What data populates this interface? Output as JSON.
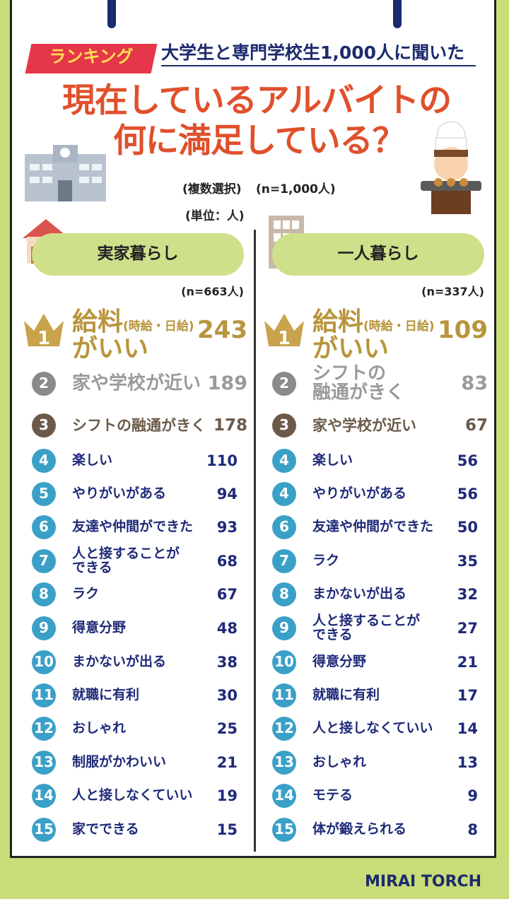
{
  "header": {
    "badge": "ランキング",
    "lead": "大学生と専門学校生1,000人に聞いた",
    "title_line1": "現在しているアルバイトの",
    "title_line2": "何に満足している？",
    "note": "(複数選択)",
    "sample": "(n=1,000人)",
    "unit": "(単位：人)"
  },
  "groups": [
    {
      "name": "実家暮らし",
      "n": "(n=663人)",
      "items": [
        {
          "rank": 1,
          "label": [
            "給料",
            "(時給・日給)",
            "がいい"
          ],
          "value": 243
        },
        {
          "rank": 2,
          "label": "家や学校が近い",
          "value": 189
        },
        {
          "rank": 3,
          "label": "シフトの融通がきく",
          "value": 178
        },
        {
          "rank": 4,
          "label": "楽しい",
          "value": 110
        },
        {
          "rank": 5,
          "label": "やりがいがある",
          "value": 94
        },
        {
          "rank": 6,
          "label": "友達や仲間ができた",
          "value": 93
        },
        {
          "rank": 7,
          "label": "人と接することが\nできる",
          "value": 68
        },
        {
          "rank": 8,
          "label": "ラク",
          "value": 67
        },
        {
          "rank": 9,
          "label": "得意分野",
          "value": 48
        },
        {
          "rank": 10,
          "label": "まかないが出る",
          "value": 38
        },
        {
          "rank": 11,
          "label": "就職に有利",
          "value": 30
        },
        {
          "rank": 12,
          "label": "おしゃれ",
          "value": 25
        },
        {
          "rank": 13,
          "label": "制服がかわいい",
          "value": 21
        },
        {
          "rank": 14,
          "label": "人と接しなくていい",
          "value": 19
        },
        {
          "rank": 15,
          "label": "家でできる",
          "value": 15
        }
      ]
    },
    {
      "name": "一人暮らし",
      "n": "(n=337人)",
      "items": [
        {
          "rank": 1,
          "label": [
            "給料",
            "(時給・日給)",
            "がいい"
          ],
          "value": 109
        },
        {
          "rank": 2,
          "label": "シフトの\n融通がきく",
          "value": 83
        },
        {
          "rank": 3,
          "label": "家や学校が近い",
          "value": 67
        },
        {
          "rank": 4,
          "label": "楽しい",
          "value": 56
        },
        {
          "rank": 4,
          "label": "やりがいがある",
          "value": 56
        },
        {
          "rank": 6,
          "label": "友達や仲間ができた",
          "value": 50
        },
        {
          "rank": 7,
          "label": "ラク",
          "value": 35
        },
        {
          "rank": 8,
          "label": "まかないが出る",
          "value": 32
        },
        {
          "rank": 9,
          "label": "人と接することが\nできる",
          "value": 27
        },
        {
          "rank": 10,
          "label": "得意分野",
          "value": 21
        },
        {
          "rank": 11,
          "label": "就職に有利",
          "value": 17
        },
        {
          "rank": 12,
          "label": "人と接しなくていい",
          "value": 14
        },
        {
          "rank": 13,
          "label": "おしゃれ",
          "value": 13
        },
        {
          "rank": 14,
          "label": "モテる",
          "value": 9
        },
        {
          "rank": 15,
          "label": "体が鍛えられる",
          "value": 8
        }
      ]
    }
  ],
  "brand": "MIRAI TORCH"
}
